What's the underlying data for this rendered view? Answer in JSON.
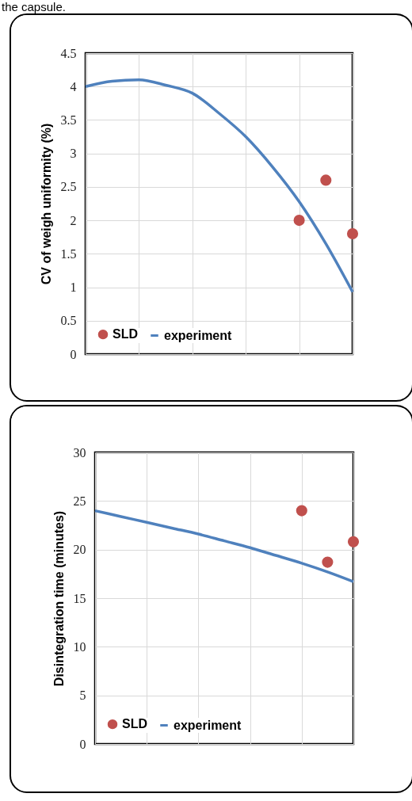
{
  "chart_data": [
    {
      "type": "scatter",
      "annotations": [
        "the capsule."
      ],
      "ylabel": "CV of weigh uniformity (%)",
      "categories": [
        null,
        null,
        null,
        null,
        null,
        null,
        null,
        null,
        null,
        null,
        null
      ],
      "ylim": [
        0,
        4.5
      ],
      "yticks": [
        0,
        0.5,
        1,
        1.5,
        2,
        2.5,
        3,
        3.5,
        4,
        4.5
      ],
      "grid": true,
      "legend": "bottom left",
      "tick_labels": "y",
      "series": [
        {
          "name": "SLD",
          "marker": "circle",
          "color": "#c0504d",
          "values": [
            null,
            null,
            null,
            null,
            null,
            null,
            null,
            null,
            2.0,
            2.6,
            1.8
          ]
        },
        {
          "name": "experiment",
          "type": "line",
          "color": "#4f81bd",
          "values": [
            4.0,
            4.08,
            4.1,
            4.02,
            3.9,
            3.6,
            3.25,
            2.8,
            2.28,
            1.65,
            0.93
          ]
        }
      ]
    },
    {
      "type": "scatter",
      "ylabel": "Disintegration time (minutes)",
      "categories": [
        null,
        null,
        null,
        null,
        null,
        null,
        null,
        null,
        null,
        null,
        null
      ],
      "ylim": [
        0,
        30
      ],
      "yticks": [
        0,
        5,
        10,
        15,
        20,
        25,
        30
      ],
      "grid": true,
      "legend": "bottom left",
      "tick_labels": "y",
      "series": [
        {
          "name": "SLD",
          "marker": "circle",
          "color": "#c0504d",
          "values": [
            null,
            null,
            null,
            null,
            null,
            null,
            null,
            null,
            24,
            18.7,
            20.8
          ]
        },
        {
          "name": "experiment",
          "type": "line",
          "color": "#4f81bd",
          "values": [
            24,
            23.4,
            22.8,
            22.2,
            21.6,
            20.9,
            20.2,
            19.4,
            18.6,
            17.7,
            16.7
          ]
        }
      ]
    }
  ]
}
